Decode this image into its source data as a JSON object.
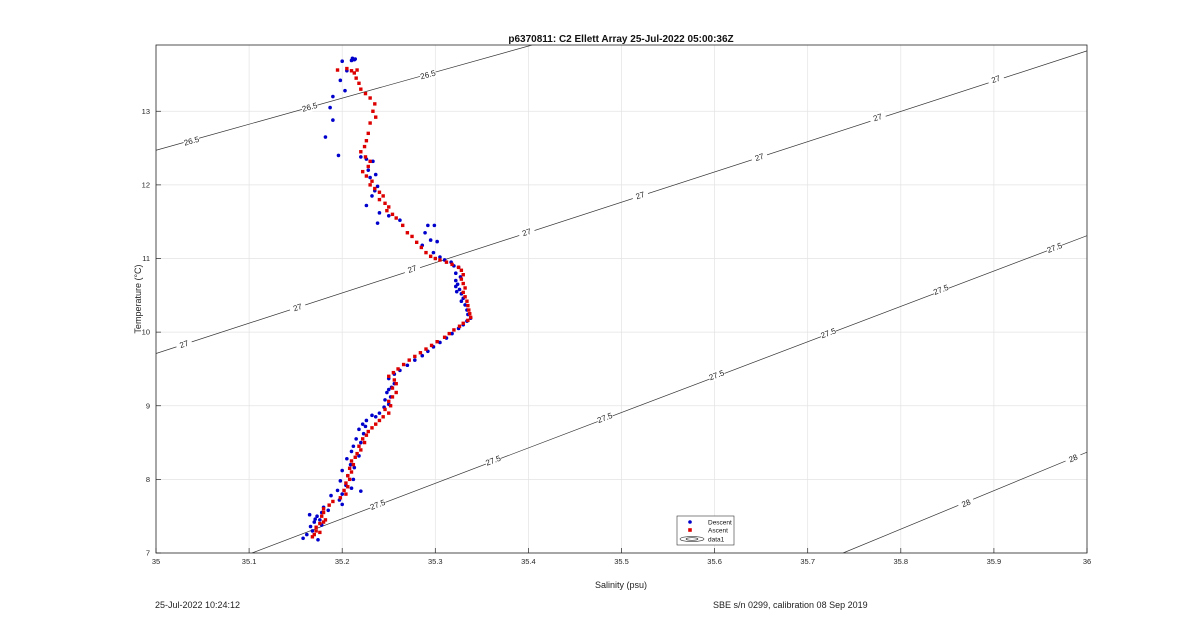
{
  "chart_data": {
    "type": "scatter",
    "title": "p6370811: C2 Ellett Array 25-Jul-2022 05:00:36Z",
    "xlabel": "Salinity (psu)",
    "ylabel": "Temperature (°C)",
    "xlim": [
      35,
      36
    ],
    "ylim": [
      7,
      13.9
    ],
    "xticks": [
      "35",
      "35.1",
      "35.2",
      "35.3",
      "35.4",
      "35.5",
      "35.6",
      "35.7",
      "35.8",
      "35.9",
      "36"
    ],
    "yticks": [
      "7",
      "8",
      "9",
      "10",
      "11",
      "12",
      "13"
    ],
    "grid": true,
    "legend": {
      "position": "bottom-center",
      "entries": [
        "Descent",
        "Ascent",
        "data1"
      ]
    },
    "series": [
      {
        "name": "Descent",
        "color": "#0000cc",
        "marker": "dot",
        "points": [
          [
            35.211,
            13.72
          ],
          [
            35.213,
            13.7
          ],
          [
            35.21,
            13.69
          ],
          [
            35.214,
            13.71
          ],
          [
            35.2,
            13.68
          ],
          [
            35.205,
            13.55
          ],
          [
            35.198,
            13.42
          ],
          [
            35.203,
            13.28
          ],
          [
            35.19,
            13.2
          ],
          [
            35.187,
            13.05
          ],
          [
            35.19,
            12.88
          ],
          [
            35.182,
            12.65
          ],
          [
            35.196,
            12.4
          ],
          [
            35.22,
            12.38
          ],
          [
            35.226,
            12.35
          ],
          [
            35.233,
            12.32
          ],
          [
            35.228,
            12.2
          ],
          [
            35.236,
            12.14
          ],
          [
            35.23,
            12.1
          ],
          [
            35.238,
            11.98
          ],
          [
            35.235,
            11.92
          ],
          [
            35.232,
            11.85
          ],
          [
            35.226,
            11.72
          ],
          [
            35.24,
            11.62
          ],
          [
            35.238,
            11.48
          ],
          [
            35.25,
            11.58
          ],
          [
            35.262,
            11.52
          ],
          [
            35.292,
            11.45
          ],
          [
            35.299,
            11.45
          ],
          [
            35.289,
            11.35
          ],
          [
            35.295,
            11.25
          ],
          [
            35.302,
            11.23
          ],
          [
            35.286,
            11.18
          ],
          [
            35.298,
            11.08
          ],
          [
            35.305,
            11.02
          ],
          [
            35.31,
            10.98
          ],
          [
            35.317,
            10.95
          ],
          [
            35.32,
            10.9
          ],
          [
            35.325,
            10.88
          ],
          [
            35.322,
            10.8
          ],
          [
            35.327,
            10.75
          ],
          [
            35.322,
            10.7
          ],
          [
            35.324,
            10.65
          ],
          [
            35.322,
            10.62
          ],
          [
            35.326,
            10.58
          ],
          [
            35.323,
            10.55
          ],
          [
            35.328,
            10.52
          ],
          [
            35.33,
            10.46
          ],
          [
            35.328,
            10.42
          ],
          [
            35.332,
            10.37
          ],
          [
            35.334,
            10.3
          ],
          [
            35.335,
            10.24
          ],
          [
            35.338,
            10.19
          ],
          [
            35.334,
            10.15
          ],
          [
            35.33,
            10.1
          ],
          [
            35.325,
            10.05
          ],
          [
            35.318,
            9.98
          ],
          [
            35.312,
            9.92
          ],
          [
            35.305,
            9.86
          ],
          [
            35.298,
            9.8
          ],
          [
            35.292,
            9.74
          ],
          [
            35.286,
            9.68
          ],
          [
            35.278,
            9.62
          ],
          [
            35.27,
            9.55
          ],
          [
            35.262,
            9.48
          ],
          [
            35.256,
            9.43
          ],
          [
            35.25,
            9.37
          ],
          [
            35.256,
            9.3
          ],
          [
            35.253,
            9.25
          ],
          [
            35.25,
            9.22
          ],
          [
            35.248,
            9.18
          ],
          [
            35.252,
            9.12
          ],
          [
            35.246,
            9.08
          ],
          [
            35.25,
            9.02
          ],
          [
            35.245,
            8.98
          ],
          [
            35.24,
            8.9
          ],
          [
            35.236,
            8.85
          ],
          [
            35.232,
            8.87
          ],
          [
            35.226,
            8.8
          ],
          [
            35.222,
            8.75
          ],
          [
            35.225,
            8.72
          ],
          [
            35.218,
            8.68
          ],
          [
            35.223,
            8.62
          ],
          [
            35.215,
            8.55
          ],
          [
            35.22,
            8.5
          ],
          [
            35.212,
            8.45
          ],
          [
            35.21,
            8.38
          ],
          [
            35.218,
            8.32
          ],
          [
            35.205,
            8.28
          ],
          [
            35.209,
            8.2
          ],
          [
            35.213,
            8.16
          ],
          [
            35.2,
            8.12
          ],
          [
            35.206,
            8.05
          ],
          [
            35.212,
            8.0
          ],
          [
            35.198,
            7.98
          ],
          [
            35.204,
            7.92
          ],
          [
            35.21,
            7.88
          ],
          [
            35.195,
            7.85
          ],
          [
            35.2,
            7.8
          ],
          [
            35.22,
            7.84
          ],
          [
            35.188,
            7.78
          ],
          [
            35.197,
            7.72
          ],
          [
            35.2,
            7.66
          ],
          [
            35.18,
            7.62
          ],
          [
            35.185,
            7.58
          ],
          [
            35.178,
            7.55
          ],
          [
            35.173,
            7.5
          ],
          [
            35.176,
            7.45
          ],
          [
            35.17,
            7.42
          ],
          [
            35.178,
            7.38
          ],
          [
            35.166,
            7.36
          ],
          [
            35.168,
            7.3
          ],
          [
            35.162,
            7.25
          ],
          [
            35.158,
            7.2
          ],
          [
            35.174,
            7.18
          ],
          [
            35.165,
            7.52
          ],
          [
            35.171,
            7.46
          ]
        ]
      },
      {
        "name": "Ascent",
        "color": "#dd0000",
        "marker": "square",
        "points": [
          [
            35.195,
            13.56
          ],
          [
            35.205,
            13.58
          ],
          [
            35.21,
            13.55
          ],
          [
            35.216,
            13.56
          ],
          [
            35.213,
            13.52
          ],
          [
            35.215,
            13.45
          ],
          [
            35.218,
            13.38
          ],
          [
            35.22,
            13.3
          ],
          [
            35.225,
            13.24
          ],
          [
            35.23,
            13.18
          ],
          [
            35.235,
            13.1
          ],
          [
            35.233,
            13.0
          ],
          [
            35.236,
            12.92
          ],
          [
            35.23,
            12.84
          ],
          [
            35.228,
            12.7
          ],
          [
            35.226,
            12.6
          ],
          [
            35.224,
            12.52
          ],
          [
            35.22,
            12.45
          ],
          [
            35.225,
            12.38
          ],
          [
            35.23,
            12.32
          ],
          [
            35.228,
            12.25
          ],
          [
            35.222,
            12.18
          ],
          [
            35.226,
            12.12
          ],
          [
            35.232,
            12.05
          ],
          [
            35.23,
            12.0
          ],
          [
            35.235,
            11.95
          ],
          [
            35.24,
            11.9
          ],
          [
            35.244,
            11.85
          ],
          [
            35.24,
            11.8
          ],
          [
            35.246,
            11.75
          ],
          [
            35.25,
            11.7
          ],
          [
            35.248,
            11.65
          ],
          [
            35.254,
            11.6
          ],
          [
            35.258,
            11.55
          ],
          [
            35.265,
            11.45
          ],
          [
            35.27,
            11.35
          ],
          [
            35.275,
            11.3
          ],
          [
            35.28,
            11.22
          ],
          [
            35.285,
            11.15
          ],
          [
            35.29,
            11.08
          ],
          [
            35.295,
            11.03
          ],
          [
            35.3,
            11.0
          ],
          [
            35.305,
            10.98
          ],
          [
            35.312,
            10.95
          ],
          [
            35.318,
            10.92
          ],
          [
            35.325,
            10.88
          ],
          [
            35.328,
            10.84
          ],
          [
            35.33,
            10.78
          ],
          [
            35.328,
            10.72
          ],
          [
            35.33,
            10.66
          ],
          [
            35.332,
            10.6
          ],
          [
            35.33,
            10.54
          ],
          [
            35.332,
            10.48
          ],
          [
            35.334,
            10.42
          ],
          [
            35.335,
            10.36
          ],
          [
            35.336,
            10.3
          ],
          [
            35.337,
            10.25
          ],
          [
            35.338,
            10.2
          ],
          [
            35.335,
            10.16
          ],
          [
            35.33,
            10.12
          ],
          [
            35.326,
            10.08
          ],
          [
            35.32,
            10.03
          ],
          [
            35.315,
            9.98
          ],
          [
            35.31,
            9.93
          ],
          [
            35.302,
            9.87
          ],
          [
            35.296,
            9.82
          ],
          [
            35.29,
            9.77
          ],
          [
            35.284,
            9.72
          ],
          [
            35.278,
            9.67
          ],
          [
            35.272,
            9.62
          ],
          [
            35.266,
            9.56
          ],
          [
            35.26,
            9.5
          ],
          [
            35.255,
            9.45
          ],
          [
            35.25,
            9.4
          ],
          [
            35.256,
            9.35
          ],
          [
            35.258,
            9.3
          ],
          [
            35.254,
            9.24
          ],
          [
            35.258,
            9.18
          ],
          [
            35.254,
            9.12
          ],
          [
            35.25,
            9.06
          ],
          [
            35.252,
            9.0
          ],
          [
            35.246,
            8.95
          ],
          [
            35.25,
            8.9
          ],
          [
            35.244,
            8.85
          ],
          [
            35.24,
            8.8
          ],
          [
            35.236,
            8.75
          ],
          [
            35.232,
            8.7
          ],
          [
            35.228,
            8.65
          ],
          [
            35.226,
            8.6
          ],
          [
            35.222,
            8.55
          ],
          [
            35.224,
            8.5
          ],
          [
            35.218,
            8.45
          ],
          [
            35.22,
            8.4
          ],
          [
            35.216,
            8.35
          ],
          [
            35.214,
            8.3
          ],
          [
            35.21,
            8.25
          ],
          [
            35.212,
            8.2
          ],
          [
            35.208,
            8.15
          ],
          [
            35.21,
            8.1
          ],
          [
            35.206,
            8.05
          ],
          [
            35.208,
            8.0
          ],
          [
            35.204,
            7.95
          ],
          [
            35.206,
            7.9
          ],
          [
            35.202,
            7.85
          ],
          [
            35.204,
            7.8
          ],
          [
            35.198,
            7.75
          ],
          [
            35.19,
            7.7
          ],
          [
            35.186,
            7.65
          ],
          [
            35.18,
            7.6
          ],
          [
            35.18,
            7.55
          ],
          [
            35.178,
            7.5
          ],
          [
            35.182,
            7.45
          ],
          [
            35.176,
            7.4
          ],
          [
            35.172,
            7.35
          ],
          [
            35.172,
            7.3
          ],
          [
            35.17,
            7.25
          ],
          [
            35.168,
            7.22
          ],
          [
            35.176,
            7.28
          ],
          [
            35.18,
            7.42
          ]
        ]
      }
    ],
    "contours": [
      {
        "label": "26.5",
        "points": [
          [
            35,
            12.47
          ],
          [
            35.404,
            13.9
          ]
        ],
        "label_positions": [
          [
            35.038,
            12.6
          ],
          [
            35.165,
            13.06
          ],
          [
            35.292,
            13.5
          ]
        ]
      },
      {
        "label": "27",
        "points": [
          [
            35,
            9.71
          ],
          [
            36,
            13.82
          ]
        ],
        "label_positions": [
          [
            35.03,
            9.84
          ],
          [
            35.152,
            10.34
          ],
          [
            35.275,
            10.86
          ],
          [
            35.398,
            11.36
          ],
          [
            35.52,
            11.86
          ],
          [
            35.648,
            12.38
          ],
          [
            35.775,
            12.92
          ],
          [
            35.902,
            13.44
          ]
        ]
      },
      {
        "label": "27.5",
        "points": [
          [
            35.103,
            7
          ],
          [
            36,
            11.31
          ]
        ],
        "label_positions": [
          [
            35.238,
            7.66
          ],
          [
            35.362,
            8.26
          ],
          [
            35.482,
            8.84
          ],
          [
            35.602,
            9.42
          ],
          [
            35.722,
            9.99
          ],
          [
            35.843,
            10.58
          ],
          [
            35.965,
            11.15
          ]
        ]
      },
      {
        "label": "28",
        "points": [
          [
            35.738,
            7
          ],
          [
            36,
            8.37
          ]
        ],
        "label_positions": [
          [
            35.87,
            7.68
          ],
          [
            35.985,
            8.29
          ]
        ]
      }
    ]
  },
  "footer": {
    "left": "25-Jul-2022 10:24:12",
    "right": "SBE s/n 0299, calibration 08 Sep 2019"
  }
}
